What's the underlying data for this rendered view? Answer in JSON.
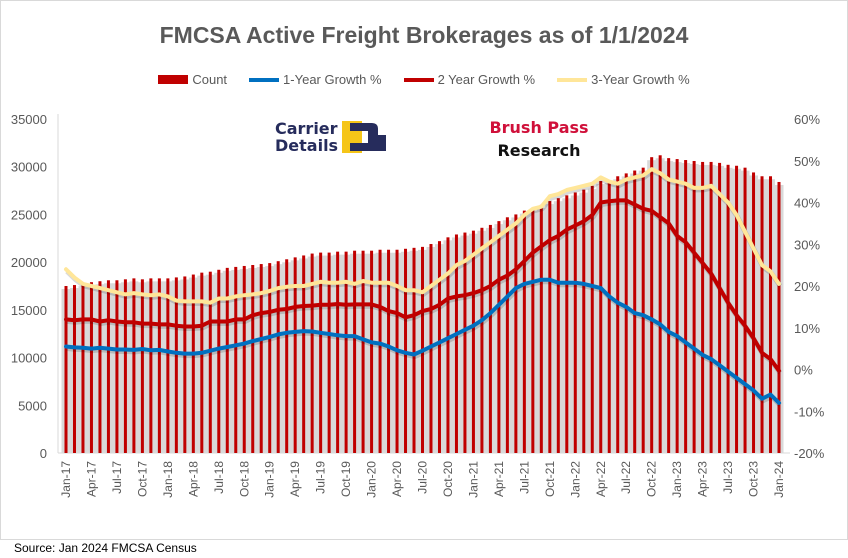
{
  "title": "FMCSA Active Freight Brokerages as of 1/1/2024",
  "source": "Source: Jan 2024 FMCSA Census",
  "logos": {
    "carrier_details": [
      "Carrier",
      "Details"
    ],
    "brush_pass": [
      "Brush Pass",
      "Research"
    ]
  },
  "colors": {
    "count": "#c00000",
    "growth_1y": "#0070c0",
    "growth_2y": "#c00000",
    "growth_3y": "#ffe699"
  },
  "chart_data": {
    "type": "bar+line",
    "title": "FMCSA Active Freight Brokerages as of 1/1/2024",
    "legend_position": "top",
    "grid": false,
    "y_left": {
      "ylim": [
        0,
        35000
      ],
      "ticks": [
        "0",
        "5000",
        "10000",
        "15000",
        "20000",
        "25000",
        "30000",
        "35000"
      ]
    },
    "y_right": {
      "ylim": [
        -20,
        60
      ],
      "ticks": [
        "-20%",
        "-10%",
        "0%",
        "10%",
        "20%",
        "30%",
        "40%",
        "50%",
        "60%"
      ]
    },
    "x_start": "Jan-17",
    "x_end": "Jan-24",
    "x_tick_labels": [
      "Jan-17",
      "Apr-17",
      "Jul-17",
      "Oct-17",
      "Jan-18",
      "Apr-18",
      "Jul-18",
      "Oct-18",
      "Jan-19",
      "Apr-19",
      "Jul-19",
      "Oct-19",
      "Jan-20",
      "Apr-20",
      "Jul-20",
      "Oct-20",
      "Jan-21",
      "Apr-21",
      "Jul-21",
      "Oct-21",
      "Jan-22",
      "Apr-22",
      "Jul-22",
      "Oct-22",
      "Jan-23",
      "Apr-23",
      "Jul-23",
      "Oct-23",
      "Jan-24"
    ],
    "series": [
      {
        "name": "Count",
        "type": "bar",
        "axis": "left",
        "values": [
          17500,
          17600,
          17800,
          17900,
          18000,
          18100,
          18100,
          18200,
          18300,
          18200,
          18300,
          18300,
          18300,
          18400,
          18500,
          18700,
          18900,
          19000,
          19200,
          19400,
          19500,
          19600,
          19700,
          19800,
          19900,
          20100,
          20300,
          20500,
          20700,
          20900,
          21000,
          21000,
          21100,
          21100,
          21200,
          21200,
          21200,
          21300,
          21300,
          21300,
          21400,
          21500,
          21600,
          21900,
          22200,
          22600,
          22900,
          23100,
          23300,
          23600,
          23900,
          24300,
          24700,
          25000,
          25400,
          25700,
          26000,
          26400,
          26700,
          27000,
          27300,
          27600,
          28000,
          28500,
          28600,
          29000,
          29300,
          29600,
          29900,
          31000,
          31200,
          30900,
          30800,
          30700,
          30600,
          30500,
          30500,
          30400,
          30200,
          30100,
          29900,
          29400,
          29000,
          29000,
          28400
        ]
      },
      {
        "name": "1-Year Growth %",
        "type": "line",
        "axis": "right",
        "values": [
          5.5,
          5.3,
          5.2,
          5.0,
          5.2,
          5.0,
          4.8,
          4.8,
          4.7,
          4.9,
          4.6,
          4.7,
          4.3,
          4.0,
          3.8,
          3.8,
          4.0,
          4.5,
          5.0,
          5.4,
          5.8,
          6.2,
          6.8,
          7.3,
          7.8,
          8.4,
          8.8,
          9.0,
          9.2,
          9.1,
          8.8,
          8.5,
          8.2,
          8.0,
          8.0,
          7.2,
          6.5,
          6.2,
          5.5,
          4.6,
          4.0,
          3.6,
          4.5,
          5.5,
          6.5,
          7.5,
          8.5,
          9.5,
          10.5,
          11.8,
          13.5,
          15.5,
          17.5,
          19.5,
          20.5,
          21.0,
          21.5,
          21.5,
          20.8,
          20.8,
          20.8,
          20.5,
          20.0,
          19.5,
          17.5,
          16.0,
          15.0,
          13.5,
          13.0,
          12.0,
          10.8,
          9.0,
          8.0,
          6.5,
          5.0,
          3.5,
          2.5,
          1.0,
          -0.5,
          -2.0,
          -3.5,
          -5.0,
          -7.0,
          -6.0,
          -8.0
        ]
      },
      {
        "name": "2 Year Growth %",
        "type": "line",
        "axis": "right",
        "values": [
          12.0,
          11.8,
          12.0,
          12.0,
          11.5,
          11.8,
          11.5,
          11.3,
          11.3,
          11.0,
          11.0,
          10.8,
          10.8,
          10.5,
          10.3,
          10.3,
          10.5,
          11.5,
          11.5,
          11.5,
          12.0,
          12.0,
          13.0,
          13.5,
          13.8,
          14.3,
          14.5,
          15.0,
          15.2,
          15.3,
          15.5,
          15.5,
          15.7,
          15.5,
          15.6,
          15.6,
          15.6,
          15.0,
          14.0,
          13.5,
          12.5,
          13.0,
          14.0,
          14.5,
          15.5,
          17.0,
          17.5,
          17.8,
          18.3,
          19.0,
          20.0,
          21.5,
          22.5,
          24.0,
          26.0,
          28.0,
          29.5,
          31.0,
          32.0,
          33.5,
          34.5,
          35.5,
          37.0,
          40.0,
          40.3,
          40.5,
          40.5,
          39.5,
          38.5,
          38.0,
          36.5,
          35.0,
          32.0,
          30.5,
          28.0,
          25.5,
          23.0,
          19.5,
          16.0,
          13.0,
          10.5,
          7.5,
          4.0,
          2.5,
          -0.3
        ]
      },
      {
        "name": "3-Year Growth %",
        "type": "line",
        "axis": "right",
        "values": [
          24.0,
          22.0,
          20.5,
          20.0,
          19.5,
          19.0,
          18.5,
          18.0,
          18.3,
          18.0,
          17.8,
          18.0,
          17.5,
          16.5,
          16.3,
          16.3,
          16.3,
          16.0,
          17.0,
          17.0,
          17.5,
          17.8,
          18.0,
          18.3,
          18.8,
          19.5,
          19.8,
          20.0,
          20.0,
          20.5,
          21.0,
          20.8,
          20.8,
          21.0,
          20.5,
          21.2,
          20.8,
          20.8,
          20.8,
          20.0,
          19.0,
          19.0,
          18.5,
          20.0,
          21.5,
          23.0,
          25.0,
          26.0,
          27.5,
          29.0,
          30.5,
          32.0,
          33.5,
          35.0,
          37.0,
          38.5,
          39.0,
          41.5,
          42.0,
          43.0,
          43.5,
          44.0,
          44.5,
          46.0,
          45.0,
          44.5,
          45.5,
          46.0,
          46.5,
          48.0,
          47.0,
          45.5,
          45.0,
          44.5,
          43.5,
          43.5,
          44.0,
          42.0,
          40.0,
          37.0,
          33.0,
          29.0,
          25.0,
          23.5,
          20.5
        ]
      }
    ]
  }
}
